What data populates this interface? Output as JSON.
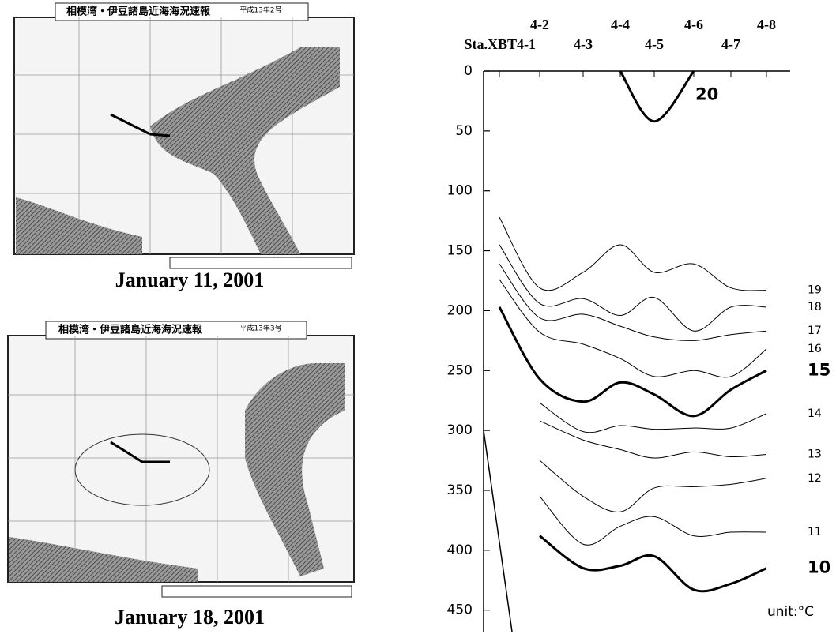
{
  "maps": [
    {
      "title": "相模湾・伊豆諸島近海海況速報",
      "issue": "平成13年2号",
      "caption": "January 11, 2001"
    },
    {
      "title": "相模湾・伊豆諸島近海海況速報",
      "issue": "平成13年3号",
      "caption": "January 18, 2001"
    }
  ],
  "chart_data": {
    "type": "line",
    "categories": [
      "Sta.XBT4-1",
      "4-2",
      "4-3",
      "4-4",
      "4-5",
      "4-6",
      "4-7",
      "4-8"
    ],
    "ylim": [
      0,
      470
    ],
    "yticks": [
      0,
      50,
      100,
      150,
      200,
      250,
      300,
      350,
      400,
      450
    ],
    "unit": "unit:°C",
    "series": [
      {
        "name": "20",
        "bold": true,
        "values": [
          null,
          null,
          null,
          0,
          42,
          0,
          null,
          null
        ]
      },
      {
        "name": "19",
        "values": [
          122,
          181,
          168,
          145,
          168,
          161,
          181,
          183
        ]
      },
      {
        "name": "18",
        "values": [
          145,
          194,
          190,
          204,
          189,
          217,
          197,
          197
        ]
      },
      {
        "name": "17",
        "values": [
          161,
          206,
          203,
          213,
          222,
          225,
          220,
          217
        ]
      },
      {
        "name": "16",
        "values": [
          174,
          218,
          228,
          240,
          255,
          250,
          255,
          232
        ]
      },
      {
        "name": "15",
        "bold": true,
        "values": [
          197,
          257,
          276,
          260,
          270,
          288,
          266,
          250
        ]
      },
      {
        "name": "14",
        "values": [
          null,
          277,
          301,
          296,
          299,
          298,
          298,
          286
        ]
      },
      {
        "name": "13",
        "values": [
          null,
          292,
          308,
          316,
          323,
          318,
          322,
          320
        ]
      },
      {
        "name": "12",
        "values": [
          null,
          325,
          355,
          368,
          348,
          347,
          345,
          340
        ]
      },
      {
        "name": "11",
        "values": [
          null,
          355,
          395,
          380,
          372,
          388,
          385,
          385
        ]
      },
      {
        "name": "10",
        "bold": true,
        "values": [
          null,
          388,
          415,
          413,
          405,
          433,
          428,
          415
        ]
      }
    ]
  }
}
